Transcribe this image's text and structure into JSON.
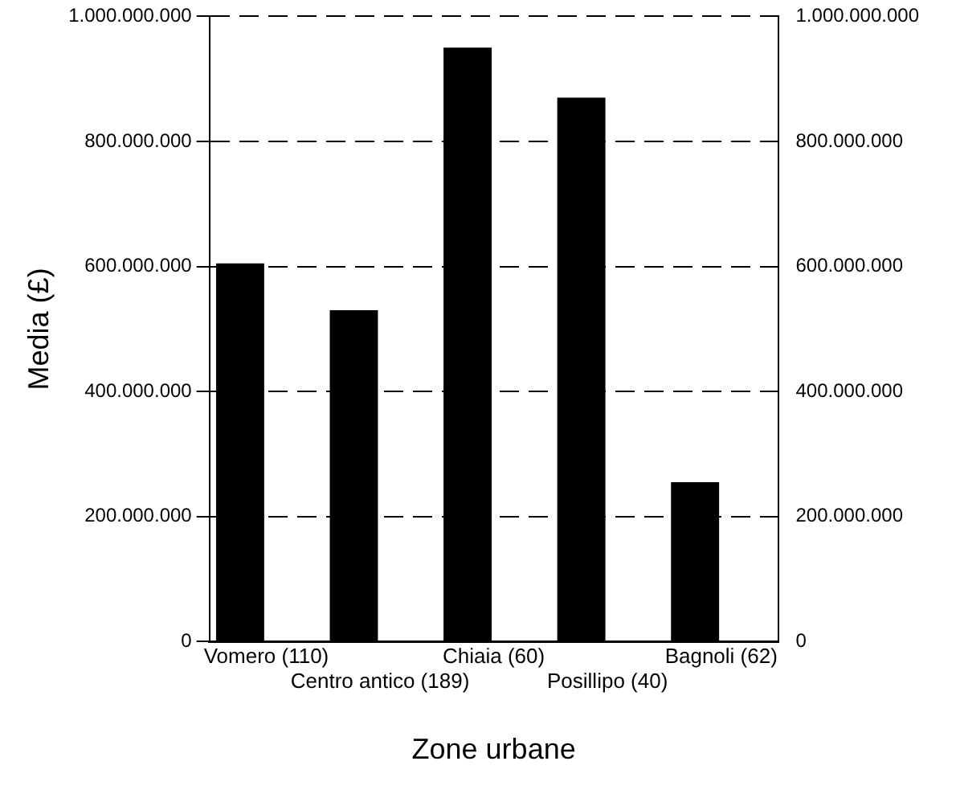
{
  "chart_data": {
    "type": "bar",
    "xlabel": "Zone urbane",
    "ylabel": "Media (£)",
    "categories": [
      "Vomero (110)",
      "Centro antico (189)",
      "Chiaia (60)",
      "Posillipo (40)",
      "Bagnoli (62)"
    ],
    "values": [
      605000000,
      530000000,
      950000000,
      870000000,
      255000000
    ],
    "color": "#000000",
    "ylim": [
      0,
      1000000000
    ],
    "yticks": [
      {
        "value": 0,
        "label": "0"
      },
      {
        "value": 200000000,
        "label": "200.000.000"
      },
      {
        "value": 400000000,
        "label": "400.000.000"
      },
      {
        "value": 600000000,
        "label": "600.000.000"
      },
      {
        "value": 800000000,
        "label": "800.000.000"
      },
      {
        "value": 1000000000,
        "label": "1.000.000.000"
      }
    ],
    "y2lim": [
      0,
      1000000000
    ],
    "y2ticks": [
      {
        "value": 0,
        "label": "0"
      },
      {
        "value": 200000000,
        "label": "200.000.000"
      },
      {
        "value": 400000000,
        "label": "400.000.000"
      },
      {
        "value": 600000000,
        "label": "600.000.000"
      },
      {
        "value": 800000000,
        "label": "800.000.000"
      },
      {
        "value": 1000000000,
        "label": "1.000.000.000"
      }
    ],
    "grid": "y",
    "legend": false
  }
}
